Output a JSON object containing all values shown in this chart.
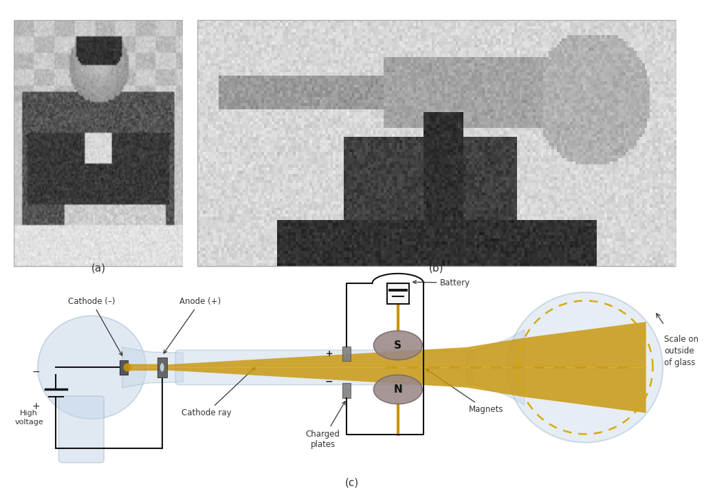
{
  "fig_width": 10.24,
  "fig_height": 7.17,
  "background_color": "#ffffff",
  "label_a": "(a)",
  "label_b": "(b)",
  "label_c": "(c)",
  "label_fontsize": 11,
  "annotation_fontsize": 8.5,
  "glass_color": "#c8d8e8",
  "glass_edge": "#a0b8cc",
  "glass_alpha": 0.5,
  "beam_color": "#c8960a",
  "beam_color_light": "#e8b820",
  "magnet_color": "#9a8888",
  "magnet_dark": "#7a6868",
  "plate_color": "#808080",
  "wire_color": "#111111",
  "battery_color": "#c8960a",
  "label_color": "#333333",
  "scale_dot_color": "#d4a800",
  "photo_a_bg": "#b0b0b0",
  "photo_b_bg": "#c0bab0",
  "annotations": {
    "cathode_minus": "Cathode (–)",
    "anode_plus": "Anode (+)",
    "cathode_ray": "Cathode ray",
    "high_voltage": "High\nvoltage",
    "battery": "Battery",
    "charged_plates": "Charged\nplates",
    "magnets": "Magnets",
    "scale_on_glass": "Scale on\noutside\nof glass",
    "plus": "+",
    "minus": "−",
    "S": "S",
    "N": "N"
  }
}
